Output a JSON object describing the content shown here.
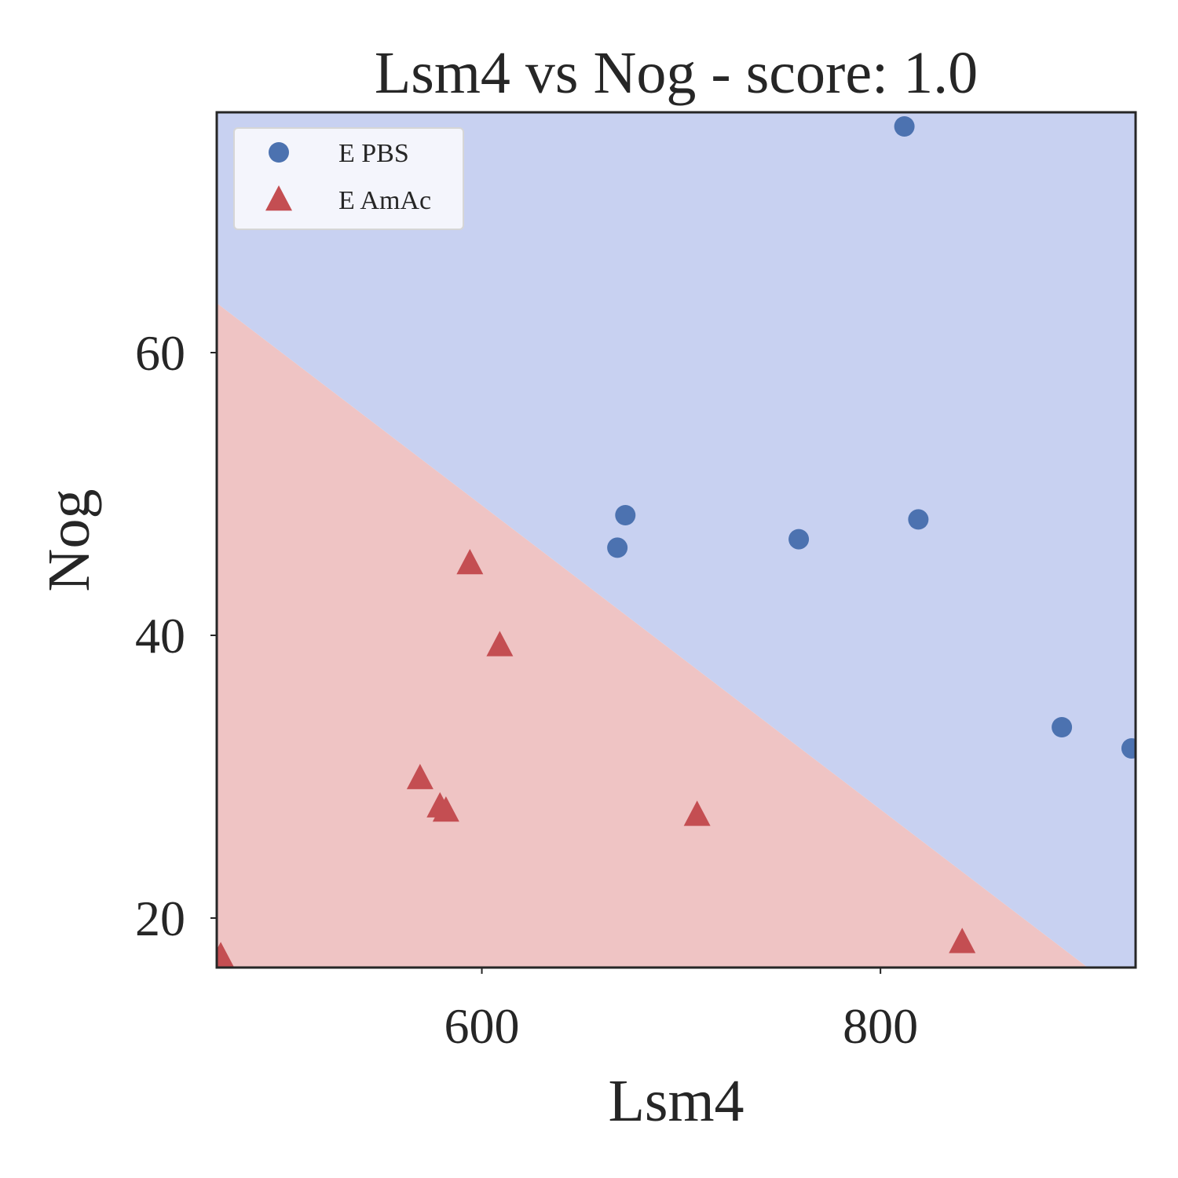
{
  "chart_data": {
    "type": "scatter",
    "title": "Lsm4 vs Nog - score: 1.0",
    "xlabel": "Lsm4",
    "ylabel": "Nog",
    "xlim": [
      467,
      928
    ],
    "ylim": [
      16.5,
      77
    ],
    "x_ticks": [
      600,
      800
    ],
    "y_ticks": [
      20,
      40,
      60
    ],
    "grid": false,
    "legend_position": "upper left",
    "background_regions": {
      "upper_color": "#c8d1f1",
      "lower_color": "#efc4c4",
      "boundary": [
        {
          "x": 467,
          "y": 63.5
        },
        {
          "x": 904,
          "y": 16.5
        }
      ]
    },
    "series": [
      {
        "name": "E PBS",
        "marker": "circle",
        "color": "#4c72b0",
        "points": [
          {
            "x": 812,
            "y": 76
          },
          {
            "x": 672,
            "y": 48.5
          },
          {
            "x": 668,
            "y": 46.2
          },
          {
            "x": 759,
            "y": 46.8
          },
          {
            "x": 819,
            "y": 48.2
          },
          {
            "x": 891,
            "y": 33.5
          },
          {
            "x": 926,
            "y": 32
          }
        ]
      },
      {
        "name": "E AmAc",
        "marker": "triangle",
        "color": "#c44e52",
        "points": [
          {
            "x": 594,
            "y": 45
          },
          {
            "x": 609,
            "y": 39.2
          },
          {
            "x": 569,
            "y": 29.8
          },
          {
            "x": 579,
            "y": 27.8
          },
          {
            "x": 582,
            "y": 27.5
          },
          {
            "x": 708,
            "y": 27.2
          },
          {
            "x": 841,
            "y": 18.2
          },
          {
            "x": 469,
            "y": 17.2
          }
        ]
      }
    ]
  }
}
